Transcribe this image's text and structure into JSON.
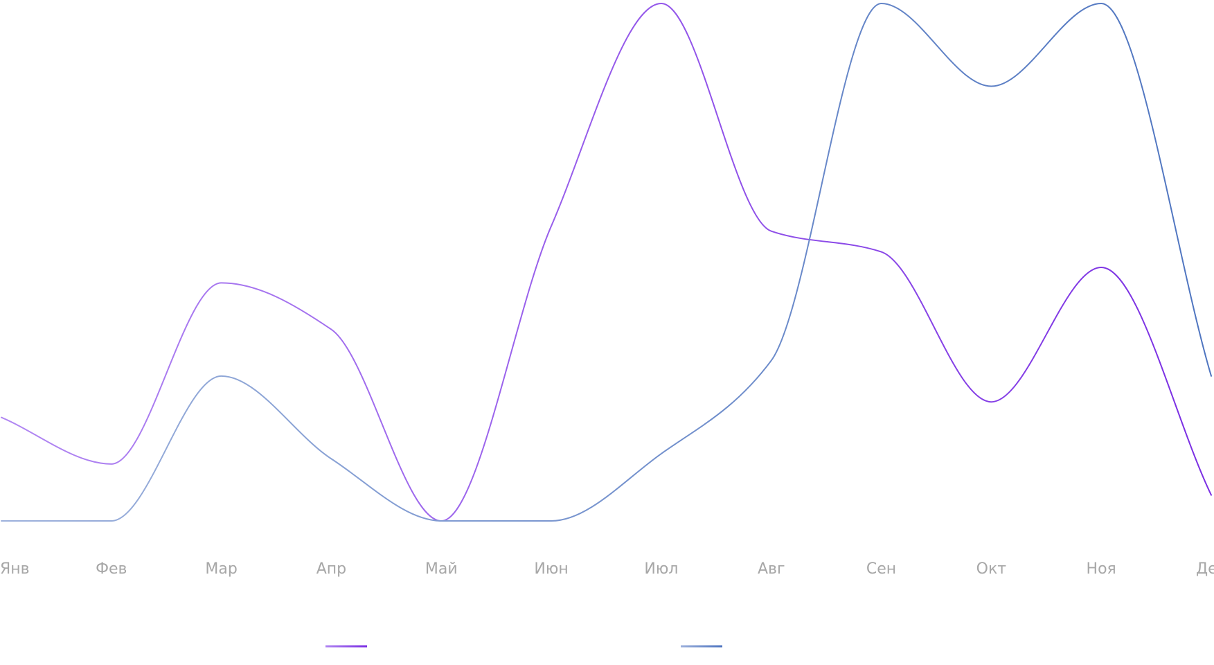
{
  "chart_data": {
    "type": "line",
    "title": "",
    "xlabel": "",
    "ylabel": "",
    "categories": [
      "Янв",
      "Фев",
      "Мар",
      "Апр",
      "Май",
      "Июн",
      "Июл",
      "Авг",
      "Сен",
      "Окт",
      "Ноя",
      "Дек"
    ],
    "ylim": [
      0,
      100
    ],
    "grid": false,
    "axes_lines": false,
    "y_tick_labels": false,
    "legend_position": "bottom",
    "legend_labels_visible": false,
    "curve": "smooth",
    "series": [
      {
        "color": "#7b2fe3",
        "color_light": "#b187f2",
        "values": [
          20,
          11,
          46,
          37,
          0,
          57,
          100,
          56,
          52,
          23,
          49,
          5
        ]
      },
      {
        "color": "#4f75c0",
        "color_light": "#9db1dc",
        "values": [
          0,
          0,
          28,
          12,
          0,
          0,
          13,
          31,
          100,
          84,
          100,
          28
        ]
      }
    ]
  }
}
